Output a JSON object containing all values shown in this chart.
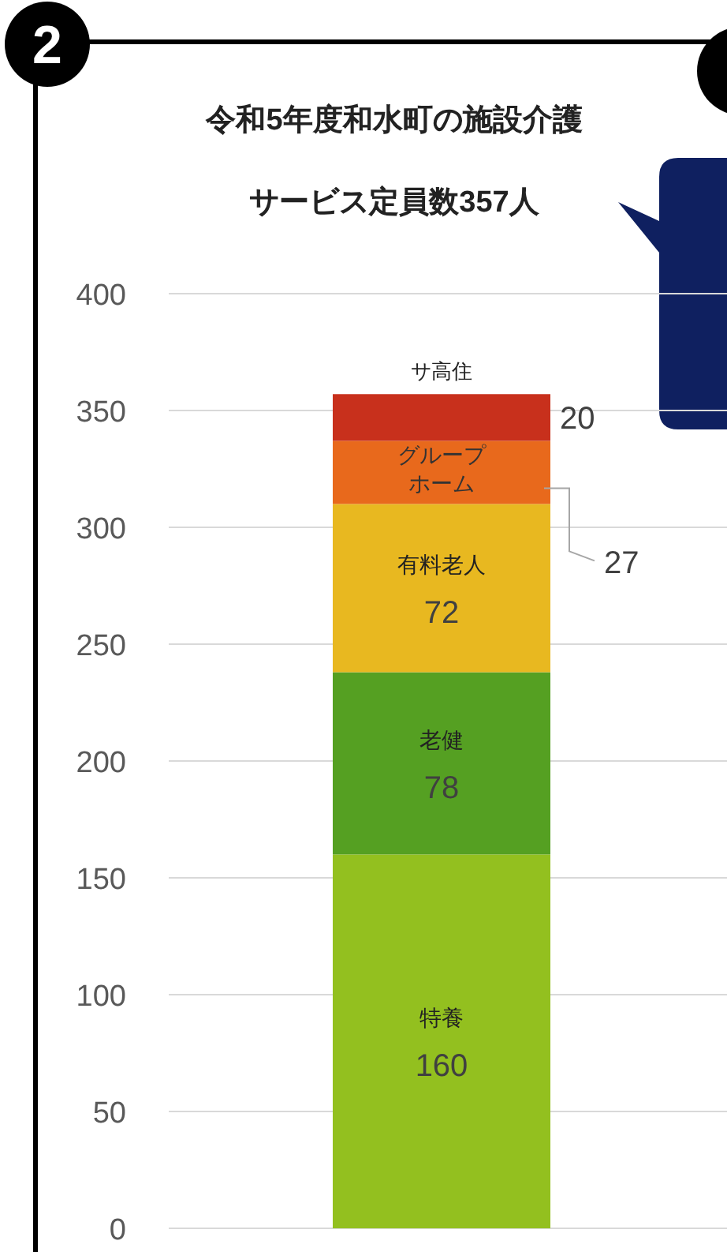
{
  "chart_data": {
    "type": "bar",
    "stacked": true,
    "title": "令和5年度和水町の施設介護",
    "subtitle": "サービス定員数357人",
    "annotations": [
      "2"
    ],
    "categories": [
      null
    ],
    "series": [
      {
        "name": "特養",
        "color": "#93c01f",
        "values": [
          160
        ]
      },
      {
        "name": "老健",
        "color": "#55a022",
        "values": [
          78
        ]
      },
      {
        "name": "有料老人",
        "color": "#e8b820",
        "values": [
          72
        ]
      },
      {
        "name": "グループホーム",
        "color": "#e8691c",
        "values": [
          27
        ]
      },
      {
        "name": "サ高住",
        "color": "#c8301c",
        "values": [
          20
        ]
      }
    ],
    "ylim": [
      0,
      400
    ],
    "yticks": [
      0,
      50,
      100,
      150,
      200,
      250,
      300,
      350,
      400
    ],
    "grid": "y",
    "data_labels": true
  }
}
